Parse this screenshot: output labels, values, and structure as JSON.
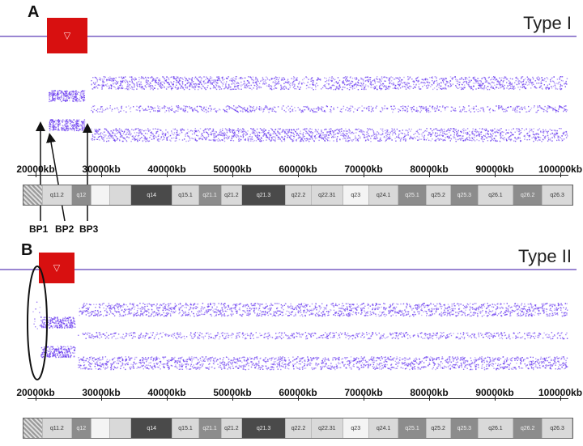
{
  "panelA": {
    "letter": "A",
    "type_label": "Type I",
    "breakpoints": [
      "BP1",
      "BP2",
      "BP3"
    ]
  },
  "panelB": {
    "letter": "B",
    "type_label": "Type II"
  },
  "deletion_marker_glyph": "▽",
  "axis": {
    "tick_labels": [
      "20000kb",
      "30000kb",
      "40000kb",
      "50000kb",
      "60000kb",
      "70000kb",
      "80000kb",
      "90000kb",
      "100000kb"
    ]
  },
  "ideogram_bands": [
    {
      "label": "",
      "shade": "hatch"
    },
    {
      "label": "q11.2",
      "shade": "light"
    },
    {
      "label": "q12",
      "shade": "mid"
    },
    {
      "label": "",
      "shade": "white"
    },
    {
      "label": "",
      "shade": "light"
    },
    {
      "label": "q14",
      "shade": "dark"
    },
    {
      "label": "q15.1",
      "shade": "light"
    },
    {
      "label": "q21.1",
      "shade": "mid"
    },
    {
      "label": "q21.2",
      "shade": "light"
    },
    {
      "label": "q21.3",
      "shade": "dark"
    },
    {
      "label": "q22.2",
      "shade": "light"
    },
    {
      "label": "q22.31",
      "shade": "light"
    },
    {
      "label": "q23",
      "shade": "white"
    },
    {
      "label": "q24.1",
      "shade": "light"
    },
    {
      "label": "q25.1",
      "shade": "mid"
    },
    {
      "label": "q25.2",
      "shade": "light"
    },
    {
      "label": "q25.3",
      "shade": "mid"
    },
    {
      "label": "q26.1",
      "shade": "light"
    },
    {
      "label": "q26.2",
      "shade": "mid"
    },
    {
      "label": "q26.3",
      "shade": "light"
    }
  ],
  "colors": {
    "points": "#6a3cf0",
    "marker": "#d81010",
    "line": "#9a86d2"
  }
}
